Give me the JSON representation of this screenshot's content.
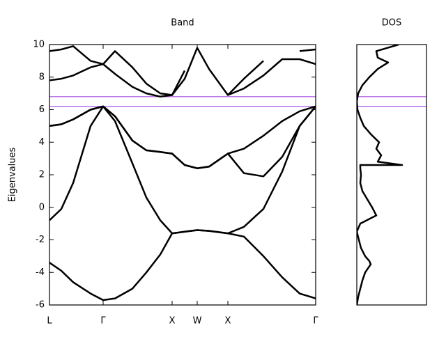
{
  "chart_data": [
    {
      "type": "line",
      "title": "Band",
      "y_label": "Eigenvalues",
      "x": [
        0,
        0.17,
        0.34,
        0.59,
        0.77,
        0.94,
        1.19,
        1.39,
        1.59,
        1.76,
        1.94,
        2.12,
        2.29,
        2.56,
        2.79,
        3.07,
        3.34,
        3.59,
        3.82
      ],
      "series": [
        {
          "color": "#000000",
          "values": [
            -3.4,
            -3.9,
            -4.6,
            -5.3,
            -5.7,
            -5.6,
            -5.0,
            -4.0,
            -2.9,
            -1.6,
            -1.5,
            -1.4,
            -1.45,
            -1.6,
            -1.8,
            -3.0,
            -4.3,
            -5.3,
            -5.6
          ]
        },
        {
          "color": "#000000",
          "values": [
            -0.8,
            -0.1,
            1.5,
            5.0,
            6.2,
            5.3,
            2.7,
            0.6,
            -0.8,
            -1.6,
            -1.5,
            -1.4,
            -1.45,
            -1.6,
            -1.2,
            -0.1,
            2.2,
            5.0,
            6.2
          ]
        },
        {
          "color": "#000000",
          "values": [
            5.0,
            5.1,
            5.4,
            6.0,
            6.2,
            5.6,
            4.1,
            3.5,
            3.4,
            3.3,
            2.6,
            2.4,
            2.5,
            3.3,
            3.6,
            4.4,
            5.3,
            5.9,
            6.2
          ]
        },
        {
          "color": "#000000",
          "values": [
            5.0,
            5.1,
            5.4,
            6.0,
            6.2,
            5.6,
            4.1,
            3.5,
            3.4,
            3.3,
            2.6,
            2.4,
            2.5,
            3.3,
            2.1,
            1.9,
            3.1,
            5.0,
            6.2
          ]
        },
        {
          "color": "#000000",
          "values": [
            7.8,
            7.9,
            8.1,
            8.6,
            8.8,
            8.2,
            7.4,
            7.0,
            6.8,
            6.9,
            7.9,
            9.8,
            8.5,
            6.9,
            7.3,
            8.1,
            9.1,
            9.1,
            8.8
          ]
        },
        {
          "color": "#000000",
          "values": [
            9.6,
            9.7,
            9.9,
            9.0,
            8.8,
            9.6,
            8.6,
            7.6,
            7.0,
            6.9,
            8.4,
            null,
            null,
            6.9,
            7.9,
            9.0,
            null,
            9.6,
            9.7
          ]
        }
      ],
      "xlim": [
        0,
        3.82
      ],
      "xticks": [
        {
          "value": 0,
          "label": "L"
        },
        {
          "value": 0.77,
          "label": "Γ"
        },
        {
          "value": 1.76,
          "label": "X"
        },
        {
          "value": 2.12,
          "label": "W"
        },
        {
          "value": 2.56,
          "label": "X"
        },
        {
          "value": 3.82,
          "label": "Γ"
        }
      ],
      "ylim": [
        -6,
        10
      ],
      "yticks": [
        -6,
        -4,
        -2,
        0,
        2,
        4,
        6,
        8,
        10
      ],
      "hlines": [
        6.2,
        6.8
      ],
      "hline_color": "#b266e8"
    },
    {
      "type": "line",
      "title": "DOS",
      "y": [
        -6,
        -5.5,
        -5,
        -4.5,
        -4,
        -3.5,
        -3.3,
        -3,
        -2.5,
        -2,
        -1.5,
        -1,
        -0.5,
        0,
        0.5,
        1,
        1.5,
        2,
        2.4,
        2.6,
        2.6,
        2.8,
        3.2,
        3.6,
        4,
        4.5,
        5,
        5.5,
        6,
        6.5,
        7,
        7.5,
        8,
        8.5,
        8.9,
        9.2,
        9.6,
        10
      ],
      "series": [
        {
          "color": "#000000",
          "values": [
            0,
            0.02,
            0.05,
            0.08,
            0.12,
            0.2,
            0.18,
            0.12,
            0.06,
            0.03,
            0,
            0.05,
            0.28,
            0.22,
            0.15,
            0.08,
            0.05,
            0.06,
            0.05,
            0.05,
            0.65,
            0.3,
            0.35,
            0.28,
            0.32,
            0.2,
            0.1,
            0.05,
            0.01,
            0,
            0.02,
            0.08,
            0.18,
            0.3,
            0.45,
            0.3,
            0.28,
            0.6
          ]
        }
      ],
      "xlim": [
        0,
        1
      ],
      "ylim": [
        -6,
        10
      ],
      "hlines": [
        6.2,
        6.8
      ],
      "hline_color": "#b266e8"
    }
  ]
}
